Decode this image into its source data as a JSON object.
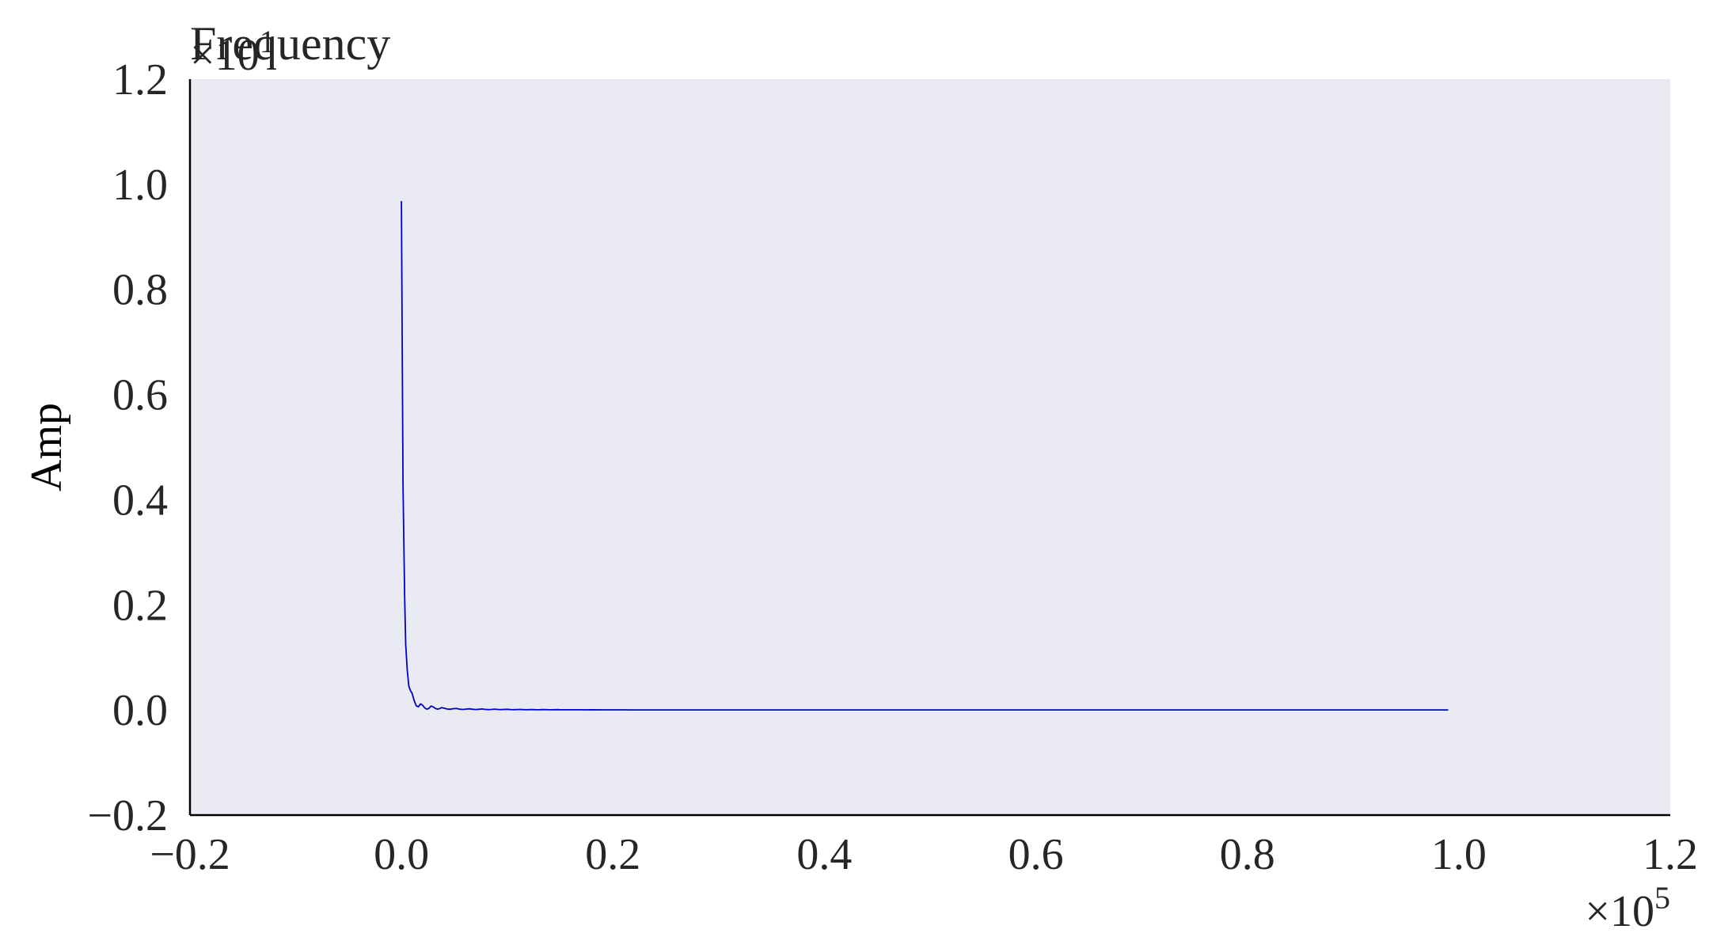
{
  "chart_data": {
    "type": "line",
    "title": "Frequency",
    "xlabel": "",
    "ylabel": "Amp",
    "xlim": [
      -0.2,
      1.2
    ],
    "ylim": [
      -0.2,
      1.2
    ],
    "x_ticks": [
      "−0.2",
      "0.0",
      "0.2",
      "0.4",
      "0.6",
      "0.8",
      "1.0",
      "1.2"
    ],
    "y_ticks": [
      "−0.2",
      "0.0",
      "0.2",
      "0.4",
      "0.6",
      "0.8",
      "1.0",
      "1.2"
    ],
    "x_offset_base": "×10",
    "x_offset_exp": "5",
    "y_offset_base": "×10",
    "y_offset_exp": "1",
    "grid": false,
    "legend": "none",
    "background_color": "#eaeaf2",
    "line_color": "#0000cc",
    "series": [
      {
        "x": [
          0.0,
          0.0015,
          0.003,
          0.004,
          0.0055,
          0.007,
          0.0085,
          0.01,
          0.012,
          0.014,
          0.016,
          0.018,
          0.02,
          0.022,
          0.024,
          0.026,
          0.028,
          0.03,
          0.032,
          0.034,
          0.036,
          0.038,
          0.04,
          0.043,
          0.046,
          0.049,
          0.052,
          0.055,
          0.058,
          0.061,
          0.064,
          0.067,
          0.07,
          0.073,
          0.076,
          0.079,
          0.082,
          0.085,
          0.088,
          0.091,
          0.094,
          0.097,
          0.1,
          0.103,
          0.106,
          0.109,
          0.112,
          0.115,
          0.118,
          0.121,
          0.124,
          0.127,
          0.13,
          0.133,
          0.136,
          0.139,
          0.142,
          0.145,
          0.148,
          0.15,
          0.155,
          0.16,
          0.165,
          0.17,
          0.175,
          0.18,
          0.19,
          0.2,
          0.21,
          0.22,
          0.23,
          0.25,
          0.3,
          0.35,
          0.4,
          0.5,
          0.6,
          0.7,
          0.8,
          0.9,
          0.99
        ],
        "y": [
          0.968,
          0.43,
          0.215,
          0.125,
          0.075,
          0.045,
          0.037,
          0.032,
          0.018,
          0.008,
          0.006,
          0.0115,
          0.009,
          0.004,
          0.0015,
          0.003,
          0.0075,
          0.006,
          0.003,
          0.0015,
          0.0025,
          0.0045,
          0.0035,
          0.0018,
          0.0012,
          0.0025,
          0.0028,
          0.0016,
          0.0009,
          0.0016,
          0.0022,
          0.0014,
          0.0008,
          0.0012,
          0.0018,
          0.0011,
          0.0007,
          0.001,
          0.0015,
          0.0009,
          0.0006,
          0.0009,
          0.0012,
          0.0008,
          0.0005,
          0.0008,
          0.001,
          0.0006,
          0.0004,
          0.0007,
          0.0008,
          0.0005,
          0.0003,
          0.0006,
          0.0007,
          0.0004,
          0.0003,
          0.0005,
          0.0006,
          0.0004,
          0.0003,
          0.0004,
          0.0003,
          0.0003,
          0.0002,
          0.0003,
          0.0002,
          0.0002,
          0.0002,
          0.0001,
          0.0001,
          0.0001,
          0.0001,
          5e-05,
          5e-05,
          3e-05,
          2e-05,
          1e-05,
          1e-05,
          1e-05,
          0.0
        ]
      }
    ]
  }
}
